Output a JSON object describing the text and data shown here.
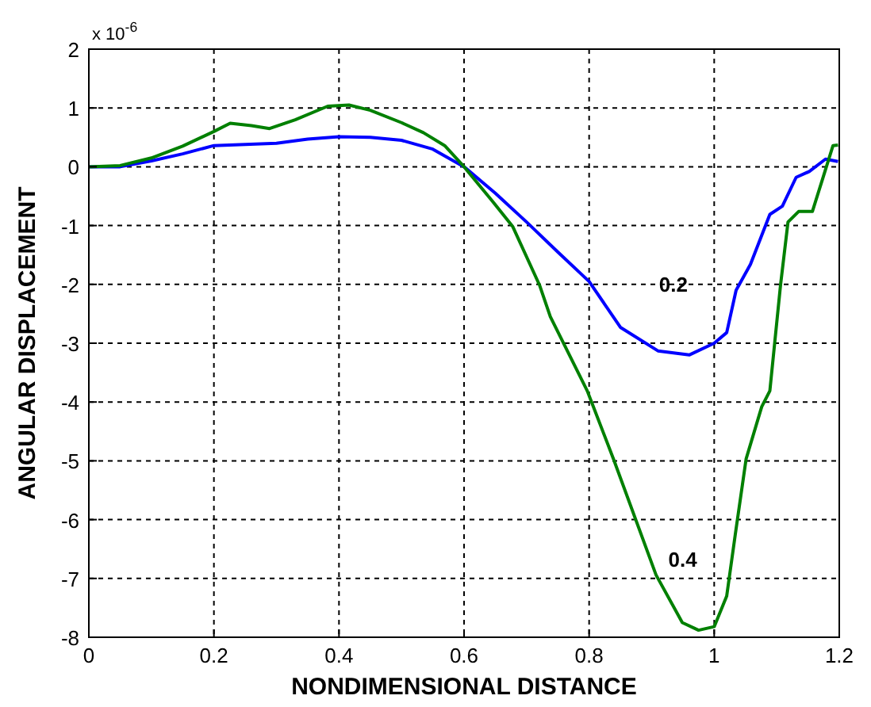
{
  "chart_data": {
    "type": "line",
    "xlabel": "NONDIMENSIONAL DISTANCE",
    "ylabel": "ANGULAR DISPLACEMENT",
    "xlim": [
      0,
      1.2
    ],
    "ylim": [
      -8,
      2
    ],
    "xticks": [
      0,
      0.2,
      0.4,
      0.6,
      0.8,
      1,
      1.2
    ],
    "yticks": [
      -8,
      -7,
      -6,
      -5,
      -4,
      -3,
      -2,
      -1,
      0,
      1,
      2
    ],
    "grid": true,
    "line_style": "solid",
    "marker": "none",
    "annotations": [
      "x 10$^{-6}$"
    ],
    "series": [
      {
        "name": "0.2",
        "color": "#0000ff",
        "x": [
          0,
          0.05,
          0.1,
          0.15,
          0.2,
          0.25,
          0.3,
          0.35,
          0.4,
          0.45,
          0.5,
          0.55,
          0.6,
          0.65,
          0.7,
          0.75,
          0.8,
          0.85,
          0.91,
          0.96,
          1.0,
          1.02,
          1.035,
          1.058,
          1.089,
          1.109,
          1.131,
          1.152,
          1.178,
          1.198
        ],
        "values": [
          0,
          0,
          0.1,
          0.22,
          0.36,
          0.38,
          0.4,
          0.47,
          0.51,
          0.5,
          0.45,
          0.3,
          0,
          -0.45,
          -0.94,
          -1.45,
          -1.95,
          -2.73,
          -3.13,
          -3.2,
          -3.0,
          -2.82,
          -2.1,
          -1.66,
          -0.81,
          -0.67,
          -0.18,
          -0.08,
          0.13,
          0.09
        ]
      },
      {
        "name": "0.4",
        "color": "#008000",
        "x": [
          0,
          0.05,
          0.1,
          0.15,
          0.2,
          0.226,
          0.26,
          0.289,
          0.33,
          0.382,
          0.416,
          0.45,
          0.5,
          0.535,
          0.569,
          0.6,
          0.645,
          0.678,
          0.721,
          0.738,
          0.797,
          0.839,
          0.907,
          0.949,
          0.975,
          1.0,
          1.02,
          1.034,
          1.051,
          1.076,
          1.089,
          1.106,
          1.118,
          1.135,
          1.157,
          1.173,
          1.19,
          1.198
        ],
        "values": [
          0,
          0.02,
          0.15,
          0.35,
          0.6,
          0.74,
          0.7,
          0.65,
          0.8,
          1.03,
          1.05,
          0.96,
          0.75,
          0.58,
          0.36,
          0,
          -0.58,
          -1.02,
          -2.02,
          -2.55,
          -3.81,
          -4.97,
          -6.94,
          -7.75,
          -7.88,
          -7.82,
          -7.3,
          -6.23,
          -4.97,
          -4.08,
          -3.81,
          -2.02,
          -0.94,
          -0.76,
          -0.76,
          -0.22,
          0.36,
          0.37
        ]
      }
    ]
  }
}
